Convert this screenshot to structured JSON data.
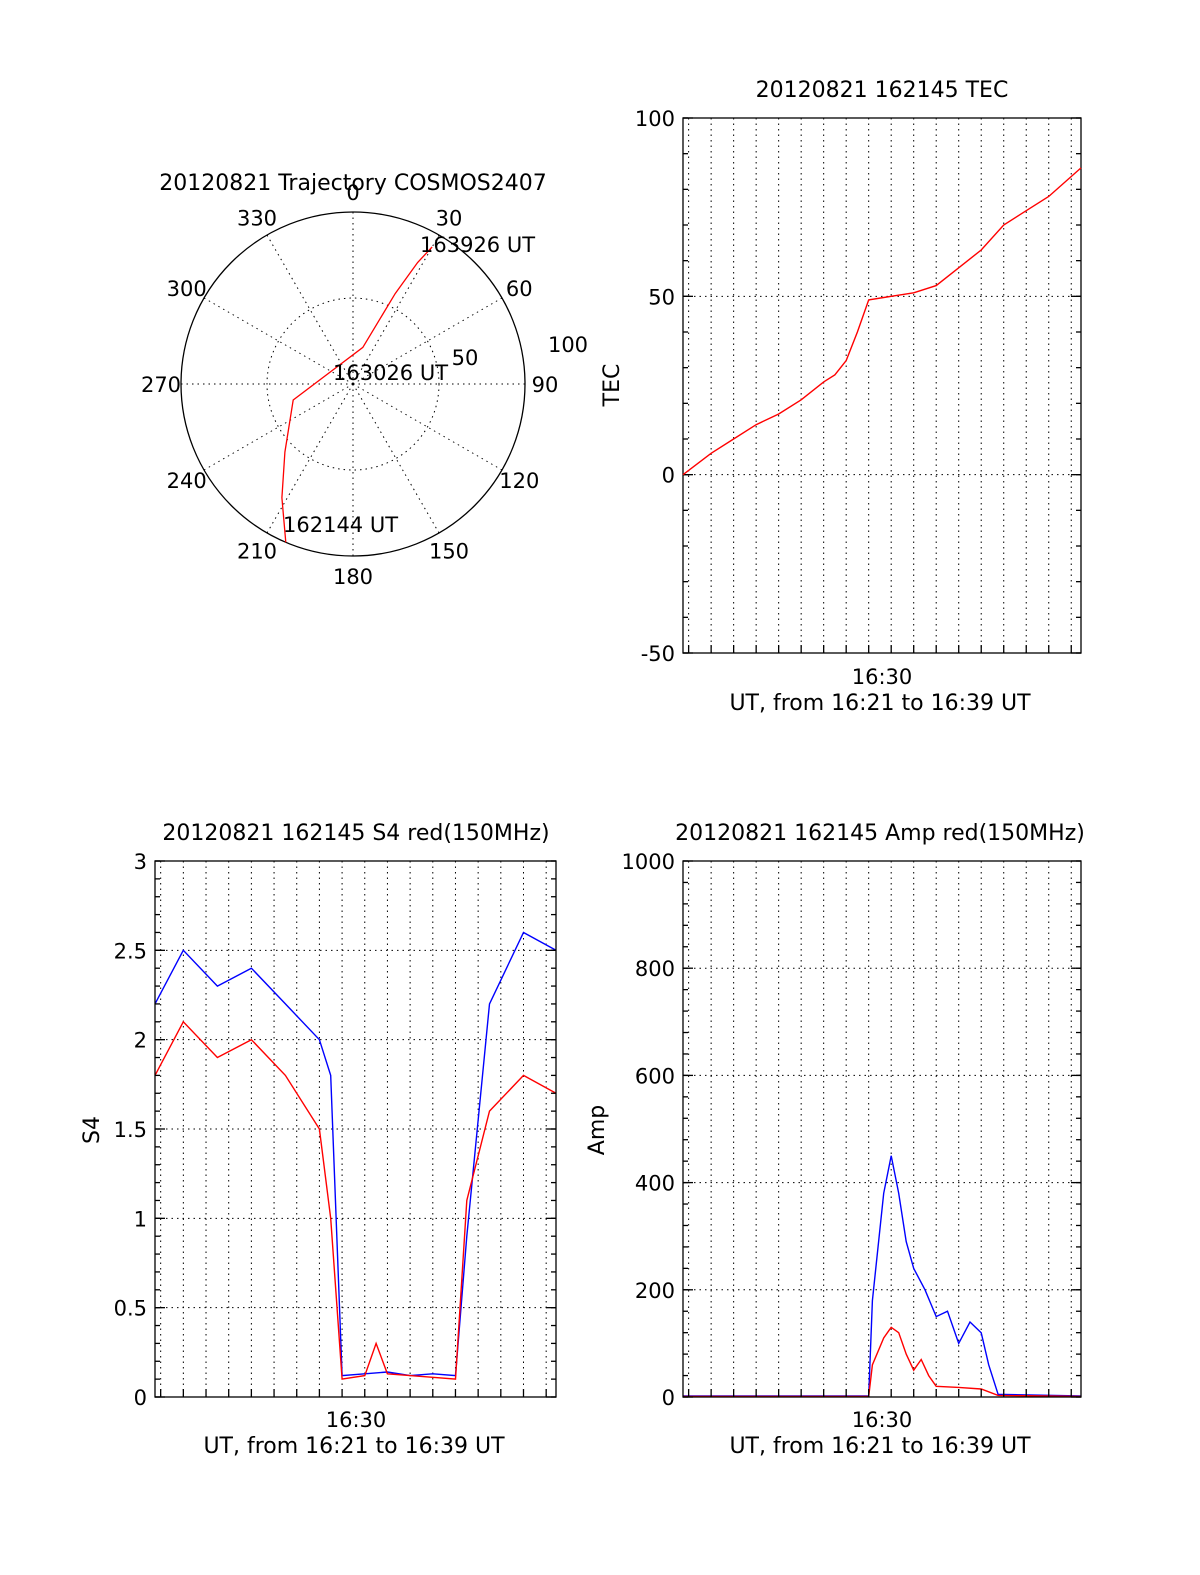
{
  "figure": {
    "date": "20120821"
  },
  "chart_data": [
    {
      "type": "polar",
      "title": "20120821 Trajectory COSMOS2407",
      "angle_labels": [
        "0",
        "30",
        "60",
        "90",
        "120",
        "150",
        "180",
        "210",
        "240",
        "270",
        "300",
        "330"
      ],
      "radial_labels": [
        "50",
        "100"
      ],
      "rlim": [
        0,
        100
      ],
      "grid": true,
      "series": [
        {
          "color": "#ff0000",
          "points": [
            [
              203,
              100
            ],
            [
              212,
              78
            ],
            [
              225,
              56
            ],
            [
              255,
              36
            ],
            [
              15,
              22
            ],
            [
              25,
              58
            ],
            [
              28,
              80
            ],
            [
              30,
              92
            ]
          ]
        }
      ],
      "annotations": [
        {
          "text": "162144 UT",
          "az": 203,
          "r": 100
        },
        {
          "text": "163026 UT",
          "az": 0,
          "r": 0
        },
        {
          "text": "163926 UT",
          "az": 30,
          "r": 92
        }
      ]
    },
    {
      "type": "line",
      "title": "20120821 162145 TEC",
      "xlabel": "UT, from 16:21 to 16:39 UT",
      "ylabel": "TEC",
      "xlim": [
        "16:21:45",
        "16:39:26"
      ],
      "ylim": [
        -50,
        100
      ],
      "yticks": [
        "-50",
        "0",
        "50",
        "100"
      ],
      "xtick_labels": [
        "16:30"
      ],
      "grid": true,
      "series": [
        {
          "color": "#ff0000",
          "x": [
            "16:21:45",
            "16:23:00",
            "16:24:00",
            "16:25:00",
            "16:26:00",
            "16:27:00",
            "16:28:00",
            "16:28:30",
            "16:29:00",
            "16:29:30",
            "16:30:00",
            "16:31:00",
            "16:32:00",
            "16:33:00",
            "16:34:00",
            "16:35:00",
            "16:36:00",
            "16:37:00",
            "16:38:00",
            "16:39:26"
          ],
          "y": [
            0,
            6,
            10,
            14,
            17,
            21,
            26,
            28,
            32,
            40,
            49,
            50,
            51,
            53,
            58,
            63,
            70,
            74,
            78,
            86
          ]
        }
      ]
    },
    {
      "type": "line",
      "title": "20120821 162145 S4 red(150MHz)",
      "xlabel": "UT, from 16:21 to 16:39 UT",
      "ylabel": "S4",
      "xlim": [
        "16:21:45",
        "16:39:26"
      ],
      "ylim": [
        0,
        3
      ],
      "yticks": [
        "0",
        "0.5",
        "1",
        "1.5",
        "2",
        "2.5",
        "3"
      ],
      "xtick_labels": [
        "16:30"
      ],
      "grid": true,
      "series": [
        {
          "color": "#0000ff",
          "x": [
            "16:21:45",
            "16:23:00",
            "16:24:30",
            "16:26:00",
            "16:27:30",
            "16:29:00",
            "16:29:30",
            "16:30:00",
            "16:31:00",
            "16:32:00",
            "16:33:00",
            "16:34:00",
            "16:35:00",
            "16:35:30",
            "16:36:30",
            "16:38:00",
            "16:39:26"
          ],
          "y": [
            2.2,
            2.5,
            2.3,
            2.4,
            2.2,
            2.0,
            1.8,
            0.12,
            0.13,
            0.14,
            0.12,
            0.13,
            0.12,
            0.9,
            2.2,
            2.6,
            2.5
          ]
        },
        {
          "color": "#ff0000",
          "x": [
            "16:21:45",
            "16:23:00",
            "16:24:30",
            "16:26:00",
            "16:27:30",
            "16:29:00",
            "16:29:30",
            "16:30:00",
            "16:31:00",
            "16:31:30",
            "16:32:00",
            "16:33:00",
            "16:34:00",
            "16:35:00",
            "16:35:30",
            "16:36:30",
            "16:38:00",
            "16:39:26"
          ],
          "y": [
            1.8,
            2.1,
            1.9,
            2.0,
            1.8,
            1.5,
            1.0,
            0.1,
            0.12,
            0.3,
            0.13,
            0.12,
            0.11,
            0.1,
            1.1,
            1.6,
            1.8,
            1.7
          ]
        }
      ]
    },
    {
      "type": "line",
      "title": "20120821 162145 Amp red(150MHz)",
      "xlabel": "UT, from 16:21 to 16:39 UT",
      "ylabel": "Amp",
      "xlim": [
        "16:21:45",
        "16:39:26"
      ],
      "ylim": [
        0,
        1000
      ],
      "yticks": [
        "0",
        "200",
        "400",
        "600",
        "800",
        "1000"
      ],
      "xtick_labels": [
        "16:30"
      ],
      "grid": true,
      "series": [
        {
          "color": "#0000ff",
          "x": [
            "16:21:45",
            "16:30:00",
            "16:30:10",
            "16:30:40",
            "16:31:00",
            "16:31:20",
            "16:31:40",
            "16:32:00",
            "16:32:30",
            "16:33:00",
            "16:33:30",
            "16:34:00",
            "16:34:30",
            "16:35:00",
            "16:35:20",
            "16:35:45",
            "16:39:26"
          ],
          "y": [
            2,
            2,
            180,
            380,
            450,
            380,
            290,
            240,
            200,
            150,
            160,
            100,
            140,
            120,
            60,
            5,
            2
          ]
        },
        {
          "color": "#ff0000",
          "x": [
            "16:21:45",
            "16:30:00",
            "16:30:10",
            "16:30:40",
            "16:31:00",
            "16:31:20",
            "16:31:40",
            "16:32:00",
            "16:32:20",
            "16:32:40",
            "16:33:00",
            "16:34:00",
            "16:35:00",
            "16:35:45",
            "16:39:26"
          ],
          "y": [
            1,
            1,
            60,
            110,
            130,
            120,
            80,
            50,
            70,
            40,
            20,
            18,
            15,
            3,
            1
          ]
        }
      ]
    }
  ]
}
